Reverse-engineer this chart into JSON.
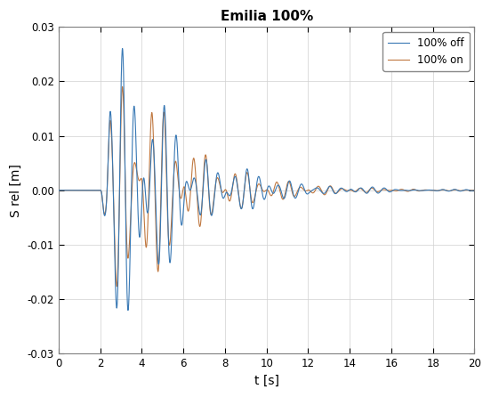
{
  "title": "Emilia 100%",
  "xlabel": "t [s]",
  "ylabel": "S rel [m]",
  "xlim": [
    0,
    20
  ],
  "ylim": [
    -0.03,
    0.03
  ],
  "xticks": [
    0,
    2,
    4,
    6,
    8,
    10,
    12,
    14,
    16,
    18,
    20
  ],
  "yticks": [
    -0.03,
    -0.02,
    -0.01,
    0,
    0.01,
    0.02,
    0.03
  ],
  "color_off": "#3878B4",
  "color_on": "#C07840",
  "legend_off": "100% off",
  "legend_on": "100% on",
  "linewidth": 0.8,
  "background_color": "#FFFFFF",
  "grid_color": "#D0D0D0",
  "title_fontsize": 11,
  "label_fontsize": 10
}
